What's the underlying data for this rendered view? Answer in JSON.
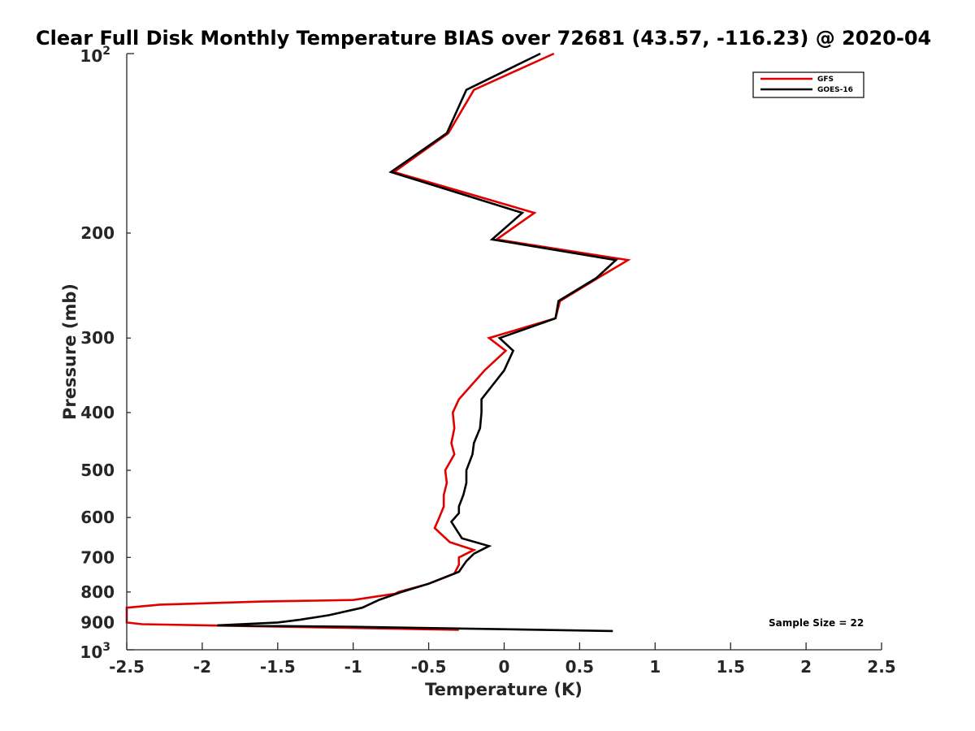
{
  "chart_data": {
    "type": "line",
    "title": "Clear Full Disk Monthly Temperature BIAS over 72681 (43.57, -116.23) @ 2020-04",
    "xlabel": "Temperature (K)",
    "ylabel": "Pressure (mb)",
    "xlim": [
      -2.5,
      2.5
    ],
    "ylim": [
      100,
      1000
    ],
    "yscale": "log",
    "ydirection": "reverse",
    "x_ticks": [
      -2.5,
      -2,
      -1.5,
      -1,
      -0.5,
      0,
      0.5,
      1,
      1.5,
      2,
      2.5
    ],
    "x_tick_labels": [
      "-2.5",
      "-2",
      "-1.5",
      "-1",
      "-0.5",
      "0",
      "0.5",
      "1",
      "1.5",
      "2",
      "2.5"
    ],
    "y_ticks": [
      200,
      300,
      400,
      500,
      600,
      700,
      800,
      900
    ],
    "y_tick_labels": [
      "200",
      "300",
      "400",
      "500",
      "600",
      "700",
      "800",
      "900"
    ],
    "y_min_label": {
      "base": "10",
      "exp": "2"
    },
    "y_max_label": {
      "base": "10",
      "exp": "3"
    },
    "legend_placement": "top-right",
    "annotation": "Sample Size = 22",
    "series": [
      {
        "name": "GFS",
        "color": "#e00000",
        "points": [
          [
            0.33,
            100
          ],
          [
            -0.2,
            115
          ],
          [
            -0.37,
            136
          ],
          [
            -0.73,
            158
          ],
          [
            0.2,
            185
          ],
          [
            -0.05,
            205
          ],
          [
            0.82,
            222
          ],
          [
            0.62,
            238
          ],
          [
            0.37,
            260
          ],
          [
            0.34,
            278
          ],
          [
            -0.1,
            300
          ],
          [
            0.01,
            315
          ],
          [
            -0.13,
            340
          ],
          [
            -0.3,
            380
          ],
          [
            -0.34,
            400
          ],
          [
            -0.33,
            425
          ],
          [
            -0.35,
            450
          ],
          [
            -0.33,
            470
          ],
          [
            -0.39,
            500
          ],
          [
            -0.38,
            525
          ],
          [
            -0.4,
            550
          ],
          [
            -0.4,
            575
          ],
          [
            -0.43,
            600
          ],
          [
            -0.46,
            625
          ],
          [
            -0.36,
            660
          ],
          [
            -0.2,
            680
          ],
          [
            -0.3,
            700
          ],
          [
            -0.3,
            720
          ],
          [
            -0.33,
            745
          ],
          [
            -0.5,
            775
          ],
          [
            -0.7,
            800
          ],
          [
            -0.72,
            805
          ],
          [
            -1.0,
            825
          ],
          [
            -1.6,
            830
          ],
          [
            -2.28,
            840
          ],
          [
            -2.5,
            850
          ],
          [
            -2.5,
            900
          ],
          [
            -2.4,
            906
          ],
          [
            -0.3,
            926
          ]
        ]
      },
      {
        "name": "GOES-16",
        "color": "#000000",
        "points": [
          [
            0.24,
            100
          ],
          [
            -0.25,
            115
          ],
          [
            -0.38,
            136
          ],
          [
            -0.75,
            158
          ],
          [
            0.12,
            185
          ],
          [
            -0.08,
            205
          ],
          [
            0.74,
            222
          ],
          [
            0.61,
            238
          ],
          [
            0.36,
            260
          ],
          [
            0.34,
            278
          ],
          [
            -0.03,
            300
          ],
          [
            0.06,
            315
          ],
          [
            0.0,
            340
          ],
          [
            -0.15,
            380
          ],
          [
            -0.15,
            400
          ],
          [
            -0.16,
            425
          ],
          [
            -0.2,
            450
          ],
          [
            -0.21,
            470
          ],
          [
            -0.25,
            500
          ],
          [
            -0.25,
            525
          ],
          [
            -0.27,
            550
          ],
          [
            -0.3,
            575
          ],
          [
            -0.3,
            590
          ],
          [
            -0.35,
            610
          ],
          [
            -0.28,
            650
          ],
          [
            -0.1,
            670
          ],
          [
            -0.2,
            690
          ],
          [
            -0.25,
            710
          ],
          [
            -0.3,
            740
          ],
          [
            -0.5,
            775
          ],
          [
            -0.68,
            800
          ],
          [
            -0.83,
            825
          ],
          [
            -0.94,
            850
          ],
          [
            -1.16,
            875
          ],
          [
            -1.35,
            890
          ],
          [
            -1.5,
            900
          ],
          [
            -1.9,
            910
          ],
          [
            -1.0,
            915
          ],
          [
            0.72,
            930
          ]
        ]
      }
    ]
  }
}
